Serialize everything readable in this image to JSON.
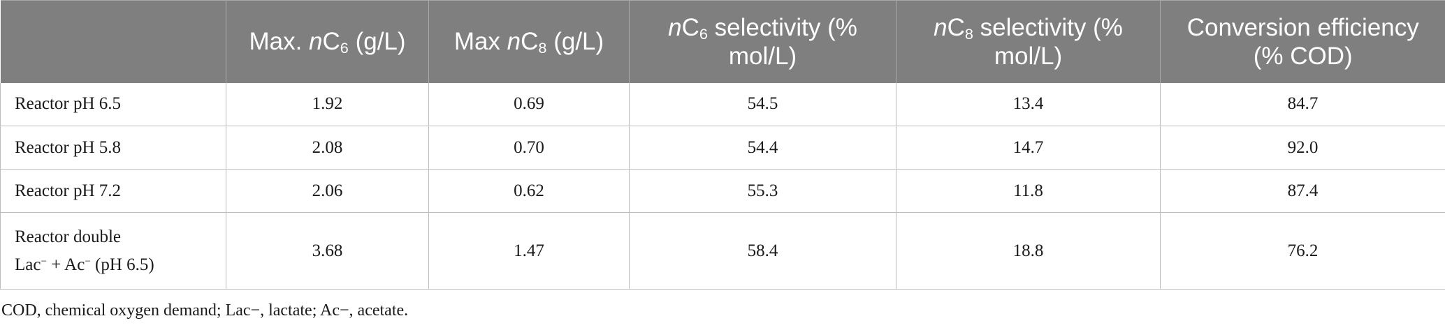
{
  "table": {
    "headers": [
      {
        "pre": "",
        "prefix": "Max. ",
        "var": "n",
        "base": "C",
        "sub": "6",
        "suffix": " (g/L)"
      },
      {
        "pre": "",
        "prefix": "Max ",
        "var": "n",
        "base": "C",
        "sub": "8",
        "suffix": " (g/L)"
      },
      {
        "pre": "",
        "prefix": "",
        "var": "n",
        "base": "C",
        "sub": "6",
        "suffix": " selectivity (% mol/L)"
      },
      {
        "pre": "",
        "prefix": "",
        "var": "n",
        "base": "C",
        "sub": "8",
        "suffix": " selectivity (% mol/L)"
      },
      {
        "pre": "",
        "prefix": "Conversion efficiency (% COD)",
        "var": "",
        "base": "",
        "sub": "",
        "suffix": ""
      }
    ],
    "rows": [
      {
        "label": "Reactor pH 6.5",
        "values": [
          "1.92",
          "0.69",
          "54.5",
          "13.4",
          "84.7"
        ]
      },
      {
        "label": "Reactor pH 5.8",
        "values": [
          "2.08",
          "0.70",
          "54.4",
          "14.7",
          "92.0"
        ]
      },
      {
        "label": "Reactor pH 7.2",
        "values": [
          "2.06",
          "0.62",
          "55.3",
          "11.8",
          "87.4"
        ]
      }
    ],
    "last_row": {
      "label_line1": "Reactor double",
      "label_lac": "Lac",
      "label_plus": " + ",
      "label_ac": "Ac",
      "label_charge": "−",
      "label_tail": " (pH 6.5)",
      "values": [
        "3.68",
        "1.47",
        "58.4",
        "18.8",
        "76.2"
      ]
    }
  },
  "footnote": "COD, chemical oxygen demand; Lac−, lactate; Ac−, acetate."
}
